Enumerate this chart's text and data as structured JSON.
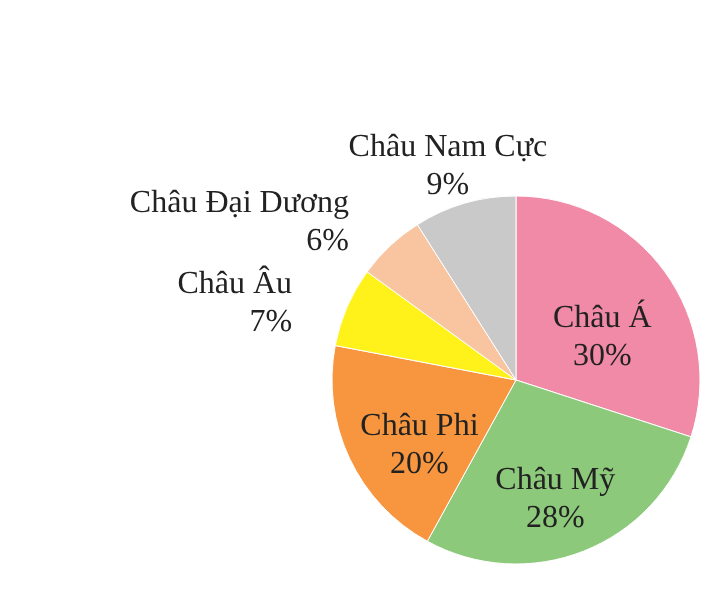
{
  "chart_data": {
    "type": "pie",
    "categories": [
      "Châu Á",
      "Châu Mỹ",
      "Châu Phi",
      "Châu Âu",
      "Châu Đại Dương",
      "Châu Nam Cực"
    ],
    "values": [
      30,
      28,
      20,
      7,
      6,
      9
    ],
    "value_labels": [
      "30%",
      "28%",
      "20%",
      "7%",
      "6%",
      "9%"
    ],
    "colors": [
      "#f08aa6",
      "#8dc97b",
      "#f7963f",
      "#fff21a",
      "#f9c5a0",
      "#c9c9c9"
    ]
  }
}
